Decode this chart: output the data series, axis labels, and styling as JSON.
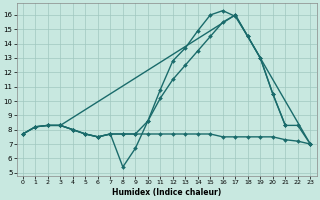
{
  "xlabel": "Humidex (Indice chaleur)",
  "bg_color": "#c8e8e0",
  "grid_color": "#a0c8c0",
  "line_color": "#1a6b6b",
  "xlim": [
    -0.5,
    23.5
  ],
  "ylim": [
    4.8,
    16.8
  ],
  "xticks": [
    0,
    1,
    2,
    3,
    4,
    5,
    6,
    7,
    8,
    9,
    10,
    11,
    12,
    13,
    14,
    15,
    16,
    17,
    18,
    19,
    20,
    21,
    22,
    23
  ],
  "yticks": [
    5,
    6,
    7,
    8,
    9,
    10,
    11,
    12,
    13,
    14,
    15,
    16
  ],
  "lines": [
    {
      "x": [
        0,
        1,
        2,
        3,
        4,
        5,
        6,
        7,
        8,
        9,
        10,
        11,
        12,
        13,
        14,
        15,
        16,
        17,
        18,
        19,
        20,
        21
      ],
      "y": [
        7.7,
        8.2,
        8.3,
        8.3,
        8.0,
        7.7,
        7.5,
        7.7,
        5.4,
        6.7,
        8.6,
        10.8,
        12.8,
        13.7,
        14.9,
        16.0,
        16.3,
        15.9,
        14.5,
        13.0,
        10.5,
        8.3
      ]
    },
    {
      "x": [
        0,
        1,
        2,
        3,
        4,
        5,
        6,
        7,
        8,
        9,
        10,
        11,
        12,
        13,
        14,
        15,
        16,
        17,
        18,
        19,
        20,
        21,
        22,
        23
      ],
      "y": [
        7.7,
        8.2,
        8.3,
        8.3,
        8.0,
        7.7,
        7.5,
        7.7,
        7.7,
        7.7,
        8.6,
        10.2,
        11.5,
        12.5,
        13.5,
        14.5,
        15.5,
        16.0,
        14.5,
        13.0,
        10.5,
        8.3,
        8.3,
        7.0
      ]
    },
    {
      "x": [
        3,
        17,
        23
      ],
      "y": [
        8.3,
        16.0,
        7.0
      ]
    },
    {
      "x": [
        0,
        1,
        2,
        3,
        4,
        5,
        6,
        7,
        8,
        9,
        10,
        11,
        12,
        13,
        14,
        15,
        16,
        17,
        18,
        19,
        20,
        21,
        22,
        23
      ],
      "y": [
        7.7,
        8.2,
        8.3,
        8.3,
        8.0,
        7.7,
        7.5,
        7.7,
        7.7,
        7.7,
        7.7,
        7.7,
        7.7,
        7.7,
        7.7,
        7.7,
        7.5,
        7.5,
        7.5,
        7.5,
        7.5,
        7.3,
        7.2,
        7.0
      ]
    }
  ]
}
